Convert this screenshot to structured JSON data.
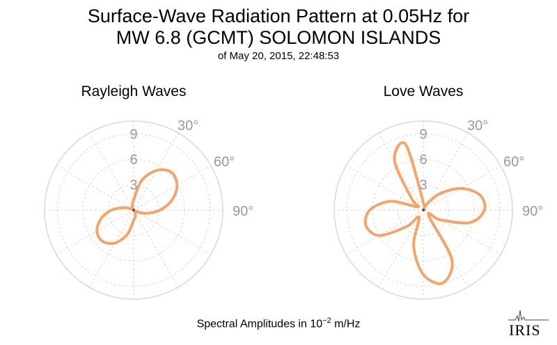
{
  "title": {
    "line1": "Surface-Wave Radiation Pattern at 0.05Hz for",
    "line2": "MW 6.8 (GCMT) SOLOMON ISLANDS",
    "subtitle": "of May 20, 2015, 22:48:53"
  },
  "footer": {
    "prefix": "Spectral Amplitudes in ",
    "base": "10",
    "exponent": "−2",
    "unit": " m/Hz"
  },
  "logo": {
    "text": "IRIS",
    "icon": "seismogram-icon"
  },
  "colors": {
    "curve": "#f4a46a",
    "grid": "#d8d8d8",
    "tick": "#999999",
    "center": "#555555"
  },
  "chart_data": [
    {
      "type": "polar",
      "title": "Rayleigh Waves",
      "r_ticks": [
        3,
        6,
        9
      ],
      "r_max": 10.5,
      "angle_ticks": [
        "30°",
        "60°",
        "90°"
      ],
      "grid": true,
      "theta_deg": [
        0,
        15,
        30,
        45,
        60,
        75,
        90,
        105,
        120,
        135,
        150,
        165,
        180,
        195,
        210,
        225,
        240,
        255,
        270,
        285,
        300,
        315,
        330,
        345
      ],
      "r": [
        1.2,
        3.6,
        5.4,
        6.3,
        5.9,
        4.7,
        3.1,
        1.5,
        0.3,
        0.0,
        0.3,
        0.8,
        1.2,
        3.0,
        4.5,
        5.2,
        5.0,
        4.0,
        2.6,
        1.1,
        0.2,
        0.0,
        0.2,
        0.6
      ]
    },
    {
      "type": "polar",
      "title": "Love Waves",
      "r_ticks": [
        3,
        6,
        9
      ],
      "r_max": 10.5,
      "angle_ticks": [
        "30°",
        "60°",
        "90°"
      ],
      "grid": true,
      "theta_deg": [
        0,
        15,
        30,
        45,
        60,
        75,
        90,
        105,
        120,
        135,
        150,
        165,
        180,
        195,
        210,
        225,
        240,
        255,
        270,
        285,
        300,
        315,
        330,
        345
      ],
      "r": [
        0.9,
        0.1,
        0.8,
        2.7,
        5.1,
        6.9,
        7.2,
        5.7,
        2.3,
        0.9,
        6.7,
        8.9,
        7.6,
        4.4,
        1.0,
        2.7,
        6.0,
        7.0,
        6.3,
        4.0,
        0.8,
        2.0,
        6.8,
        8.0
      ]
    }
  ]
}
